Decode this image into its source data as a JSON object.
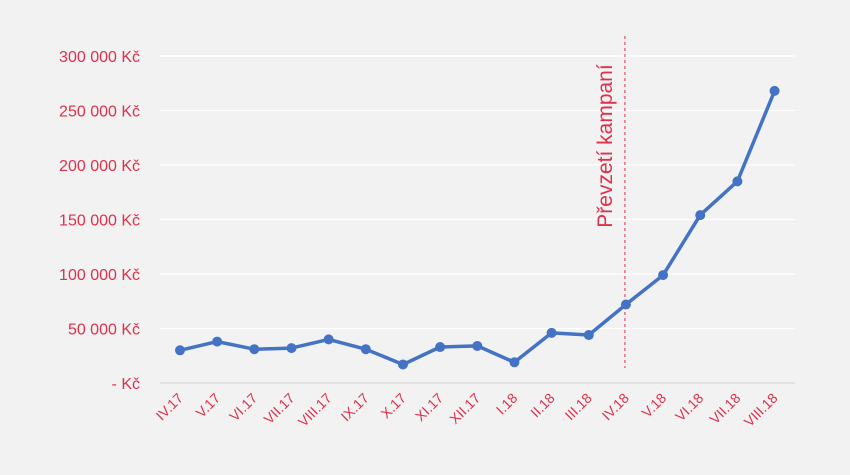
{
  "colors": {
    "background": "#f2f2f2",
    "gridline": "#ffffff",
    "axis_line": "#d9d9d9",
    "label_text": "#e0304a",
    "series_line": "#4472c4",
    "annotation_line": "#e0304a"
  },
  "chart_data": {
    "type": "line",
    "categories": [
      "IV.17",
      "V.17",
      "VI.17",
      "VII.17",
      "VIII.17",
      "IX.17",
      "X.17",
      "XI.17",
      "XII.17",
      "I.18",
      "II.18",
      "III.18",
      "IV.18",
      "V.18",
      "VI.18",
      "VII.18",
      "VIII.18"
    ],
    "series": [
      {
        "values": [
          30000,
          38000,
          31000,
          32000,
          40000,
          31000,
          17000,
          33000,
          34000,
          19000,
          46000,
          44000,
          72000,
          99000,
          154000,
          185000,
          268000
        ]
      }
    ],
    "y_ticks": [
      {
        "value": 300000,
        "label": "300 000 Kč"
      },
      {
        "value": 250000,
        "label": "250 000 Kč"
      },
      {
        "value": 200000,
        "label": "200 000 Kč"
      },
      {
        "value": 150000,
        "label": "150 000 Kč"
      },
      {
        "value": 100000,
        "label": "100 000 Kč"
      },
      {
        "value": 50000,
        "label": "50 000 Kč"
      },
      {
        "value": 0,
        "label": "-   Kč"
      }
    ],
    "ylim": [
      0,
      300000
    ],
    "grid": true,
    "legend": false,
    "annotations": [
      {
        "category": "IV.18",
        "text": "Převzetí kampaní",
        "style": "dashed-vertical-line"
      }
    ]
  }
}
